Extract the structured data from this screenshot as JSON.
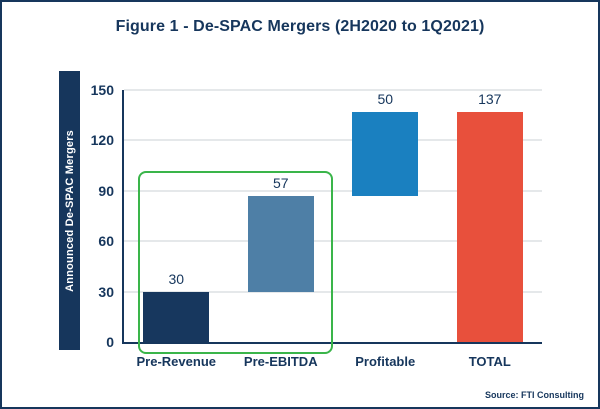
{
  "chart_data": {
    "type": "bar",
    "subtype": "waterfall",
    "title": "Figure 1 - De-SPAC Mergers (2H2020 to 1Q2021)",
    "ylabel": "Announced De-SPAC Mergers",
    "xlabel": "",
    "ylim": [
      0,
      150
    ],
    "yticks": [
      0,
      30,
      60,
      90,
      120,
      150
    ],
    "grid": true,
    "legend": false,
    "categories": [
      "Pre-Revenue",
      "Pre-EBITDA",
      "Profitable",
      "TOTAL"
    ],
    "bars": [
      {
        "category": "Pre-Revenue",
        "label": "30",
        "start": 0,
        "end": 30,
        "color": "#17375E"
      },
      {
        "category": "Pre-EBITDA",
        "label": "57",
        "start": 30,
        "end": 87,
        "color": "#4E7FA6"
      },
      {
        "category": "Profitable",
        "label": "50",
        "start": 87,
        "end": 137,
        "color": "#1A80C0"
      },
      {
        "category": "TOTAL",
        "label": "137",
        "start": 0,
        "end": 137,
        "color": "#E8503C"
      }
    ],
    "annotation": {
      "type": "highlight-box",
      "categories": [
        "Pre-Revenue",
        "Pre-EBITDA"
      ],
      "color": "#3AB54A",
      "top_value": 102
    }
  },
  "colors": {
    "frame_border": "#16365C",
    "text": "#16365C",
    "axis": "#16365C",
    "gridline": "#CBD0D6",
    "ylabel_strip_bg": "#16365C",
    "ylabel_text": "#FFFFFF"
  },
  "source": "Source: FTI Consulting"
}
